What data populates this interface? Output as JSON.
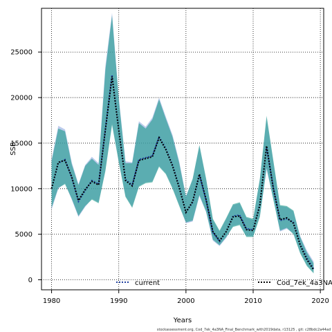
{
  "chart_data": {
    "type": "line",
    "xlabel": "Years",
    "ylabel": "SSB",
    "xlim": [
      1978.5,
      2020.5
    ],
    "ylim": [
      -1100,
      29800
    ],
    "xticks": [
      1980,
      1990,
      2000,
      2010,
      2020
    ],
    "yticks": [
      0,
      5000,
      10000,
      15000,
      20000,
      25000
    ],
    "grid": true,
    "x": [
      1980,
      1981,
      1982,
      1983,
      1984,
      1985,
      1986,
      1987,
      1988,
      1989,
      1990,
      1991,
      1992,
      1993,
      1994,
      1995,
      1996,
      1997,
      1998,
      1999,
      2000,
      2001,
      2002,
      2003,
      2004,
      2005,
      2006,
      2007,
      2008,
      2009,
      2010,
      2011,
      2012,
      2013,
      2014,
      2015,
      2016,
      2017,
      2018,
      2019
    ],
    "series": [
      {
        "name": "current",
        "color": "#1f3f9f",
        "values": [
          10000,
          12800,
          13200,
          11200,
          8600,
          9800,
          10900,
          10500,
          16500,
          22500,
          16500,
          11000,
          10400,
          13200,
          13400,
          13600,
          15700,
          14400,
          12600,
          10200,
          7400,
          8500,
          11500,
          8700,
          5200,
          4200,
          5300,
          7000,
          7100,
          5600,
          5500,
          8300,
          14500,
          10200,
          6500,
          6700,
          6300,
          3900,
          2400,
          1200
        ],
        "upper": [
          13200,
          16900,
          16500,
          12900,
          10500,
          12600,
          13500,
          12800,
          23400,
          29300,
          20000,
          13000,
          12900,
          17400,
          16800,
          17800,
          20000,
          17900,
          15900,
          13000,
          9200,
          11000,
          14700,
          11000,
          6600,
          5300,
          6700,
          8200,
          8400,
          6800,
          6600,
          11000,
          17800,
          13000,
          8100,
          8000,
          7500,
          4800,
          3200,
          2000
        ],
        "lower": [
          7700,
          10000,
          10600,
          8800,
          6900,
          8000,
          8900,
          8500,
          12000,
          17200,
          13000,
          9200,
          8000,
          10300,
          10700,
          10800,
          12500,
          11700,
          10100,
          8200,
          6200,
          6400,
          9200,
          7400,
          4300,
          3700,
          4600,
          5900,
          6100,
          4800,
          4800,
          7000,
          12100,
          8900,
          5300,
          5600,
          5100,
          3000,
          1600,
          800
        ]
      },
      {
        "name": "Cod_7ek_4a3NA",
        "color": "#1a8a7a",
        "values": [
          10000,
          12900,
          13100,
          11300,
          8700,
          9900,
          10800,
          10400,
          16400,
          22300,
          16400,
          10900,
          10300,
          13100,
          13300,
          13500,
          15600,
          14300,
          12500,
          10100,
          7400,
          8600,
          11600,
          8800,
          5300,
          4300,
          5300,
          6900,
          7000,
          5500,
          5400,
          8200,
          14700,
          10000,
          6600,
          6800,
          6200,
          3800,
          2200,
          1100
        ],
        "upper": [
          13000,
          16600,
          16300,
          12700,
          10400,
          12500,
          13300,
          12600,
          23000,
          29000,
          19800,
          12800,
          12800,
          17200,
          16600,
          17600,
          19800,
          17700,
          15700,
          12800,
          9100,
          11100,
          14800,
          11100,
          6700,
          5400,
          6800,
          8300,
          8500,
          6900,
          6700,
          11100,
          18000,
          13100,
          8200,
          8100,
          7600,
          4700,
          3000,
          1800
        ],
        "lower": [
          7900,
          10100,
          10500,
          8900,
          7000,
          8100,
          8800,
          8400,
          11900,
          17000,
          12900,
          9100,
          7900,
          10200,
          10600,
          10700,
          12400,
          11600,
          10000,
          8100,
          6300,
          6500,
          9300,
          7500,
          4400,
          3800,
          4700,
          5800,
          6000,
          4700,
          4700,
          6900,
          12300,
          8800,
          5400,
          5700,
          5000,
          2900,
          1500,
          700
        ]
      }
    ],
    "legend": {
      "placement": "bottom"
    },
    "footnote": "stockassessment.org, Cod_7ek_4a3NA_Final_Benchmark_with2019data, r13125 , git: c28bdc2a44ad"
  }
}
